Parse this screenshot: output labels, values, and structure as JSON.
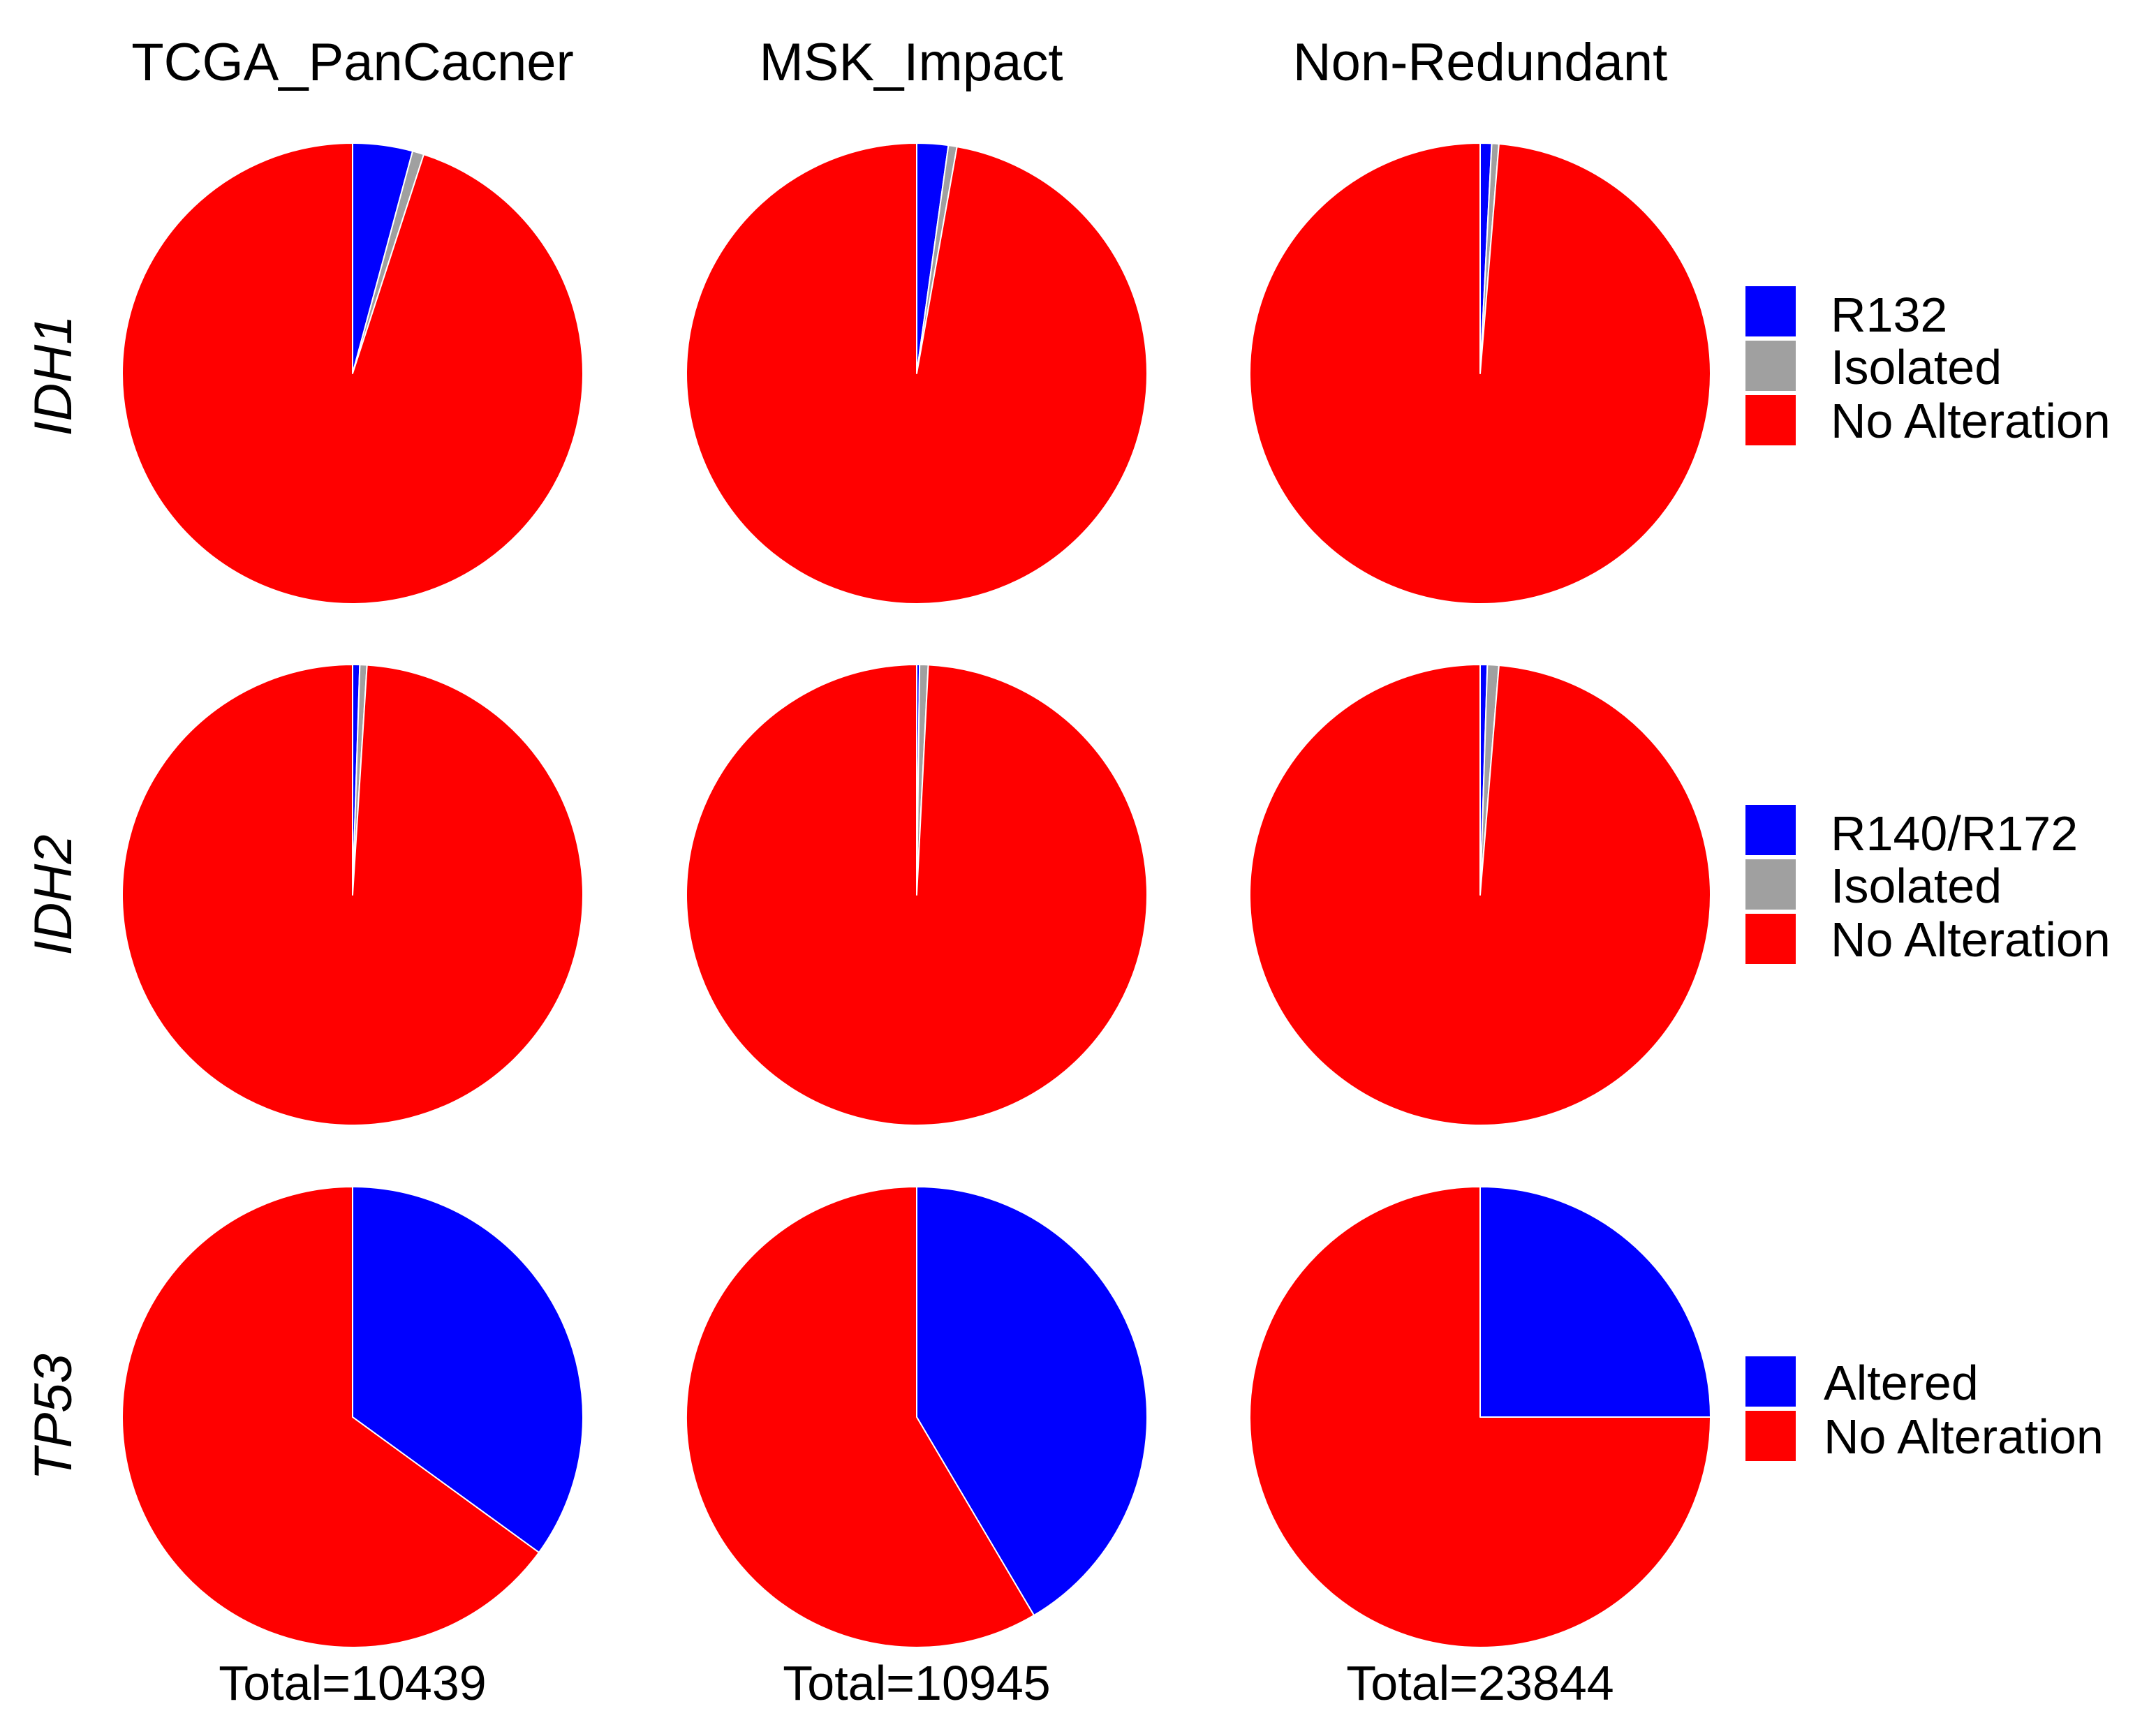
{
  "colors": {
    "blue": "#0000ff",
    "gray": "#a0a0a0",
    "red": "#ff0000"
  },
  "columns": [
    "TCGA_PanCacner",
    "MSK_Impact",
    "Non-Redundant"
  ],
  "rows": [
    "IDH1",
    "IDH2",
    "TP53"
  ],
  "totals": [
    "Total=10439",
    "Total=10945",
    "Total=23844"
  ],
  "legends": [
    {
      "items": [
        {
          "label": "R132",
          "color": "#0000ff"
        },
        {
          "label": "Isolated",
          "color": "#a0a0a0"
        },
        {
          "label": "No Alteration",
          "color": "#ff0000"
        }
      ]
    },
    {
      "items": [
        {
          "label": "R140/R172",
          "color": "#0000ff"
        },
        {
          "label": "Isolated",
          "color": "#a0a0a0"
        },
        {
          "label": "No Alteration",
          "color": "#ff0000"
        }
      ]
    },
    {
      "items": [
        {
          "label": "Altered",
          "color": "#0000ff"
        },
        {
          "label": "No Alteration",
          "color": "#ff0000"
        }
      ]
    }
  ],
  "chart_data": [
    {
      "type": "pie",
      "title": "TCGA_PanCacner",
      "row": "IDH1",
      "slices": [
        {
          "label": "R132",
          "value": 4.2,
          "color": "#0000ff"
        },
        {
          "label": "Isolated",
          "value": 0.8,
          "color": "#a0a0a0"
        },
        {
          "label": "No Alteration",
          "value": 95.0,
          "color": "#ff0000"
        }
      ]
    },
    {
      "type": "pie",
      "title": "MSK_Impact",
      "row": "IDH1",
      "slices": [
        {
          "label": "R132",
          "value": 2.2,
          "color": "#0000ff"
        },
        {
          "label": "Isolated",
          "value": 0.6,
          "color": "#a0a0a0"
        },
        {
          "label": "No Alteration",
          "value": 97.2,
          "color": "#ff0000"
        }
      ]
    },
    {
      "type": "pie",
      "title": "Non-Redundant",
      "row": "IDH1",
      "slices": [
        {
          "label": "R132",
          "value": 0.8,
          "color": "#0000ff"
        },
        {
          "label": "Isolated",
          "value": 0.5,
          "color": "#a0a0a0"
        },
        {
          "label": "No Alteration",
          "value": 98.7,
          "color": "#ff0000"
        }
      ]
    },
    {
      "type": "pie",
      "title": "TCGA_PanCacner",
      "row": "IDH2",
      "slices": [
        {
          "label": "R140/R172",
          "value": 0.5,
          "color": "#0000ff"
        },
        {
          "label": "Isolated",
          "value": 0.5,
          "color": "#a0a0a0"
        },
        {
          "label": "No Alteration",
          "value": 99.0,
          "color": "#ff0000"
        }
      ]
    },
    {
      "type": "pie",
      "title": "MSK_Impact",
      "row": "IDH2",
      "slices": [
        {
          "label": "R140/R172",
          "value": 0.2,
          "color": "#0000ff"
        },
        {
          "label": "Isolated",
          "value": 0.6,
          "color": "#a0a0a0"
        },
        {
          "label": "No Alteration",
          "value": 99.2,
          "color": "#ff0000"
        }
      ]
    },
    {
      "type": "pie",
      "title": "Non-Redundant",
      "row": "IDH2",
      "slices": [
        {
          "label": "R140/R172",
          "value": 0.5,
          "color": "#0000ff"
        },
        {
          "label": "Isolated",
          "value": 0.8,
          "color": "#a0a0a0"
        },
        {
          "label": "No Alteration",
          "value": 98.7,
          "color": "#ff0000"
        }
      ]
    },
    {
      "type": "pie",
      "title": "TCGA_PanCacner",
      "row": "TP53",
      "slices": [
        {
          "label": "Altered",
          "value": 35.0,
          "color": "#0000ff"
        },
        {
          "label": "No Alteration",
          "value": 65.0,
          "color": "#ff0000"
        }
      ]
    },
    {
      "type": "pie",
      "title": "MSK_Impact",
      "row": "TP53",
      "slices": [
        {
          "label": "Altered",
          "value": 41.5,
          "color": "#0000ff"
        },
        {
          "label": "No Alteration",
          "value": 58.5,
          "color": "#ff0000"
        }
      ]
    },
    {
      "type": "pie",
      "title": "Non-Redundant",
      "row": "TP53",
      "slices": [
        {
          "label": "Altered",
          "value": 25.0,
          "color": "#0000ff"
        },
        {
          "label": "No Alteration",
          "value": 75.0,
          "color": "#ff0000"
        }
      ]
    }
  ]
}
